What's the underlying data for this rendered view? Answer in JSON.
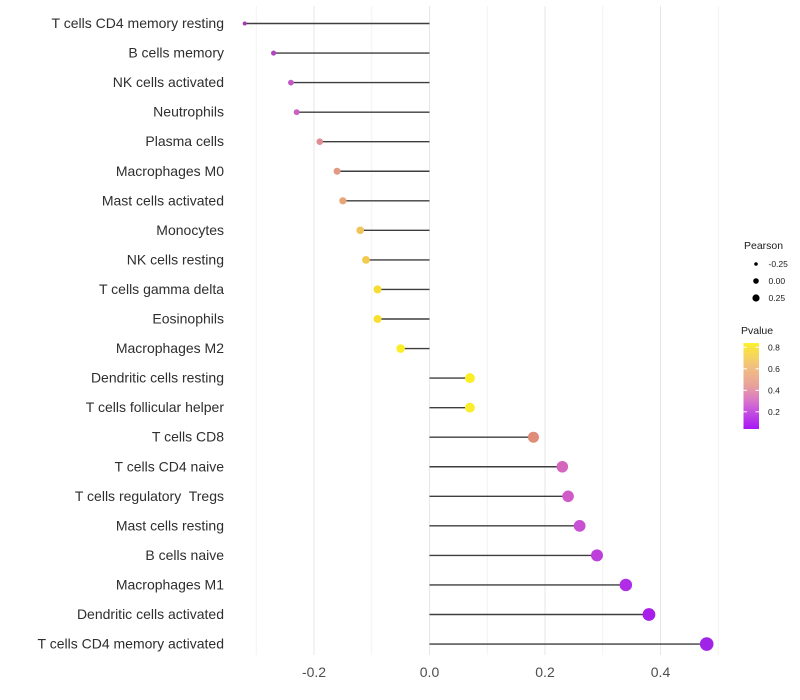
{
  "chart_data": {
    "type": "lollipop",
    "title": "",
    "xlabel": "",
    "ylabel": "",
    "xlim": [
      -0.345,
      0.52
    ],
    "grid": {
      "major": [
        -0.2,
        0.0,
        0.2,
        0.4
      ],
      "minor": [
        -0.3,
        -0.1,
        0.1,
        0.3,
        0.5
      ],
      "visible": true
    },
    "x_ticks": [
      {
        "label": "-0.2",
        "value": -0.2
      },
      {
        "label": "0.0",
        "value": 0.0
      },
      {
        "label": "0.2",
        "value": 0.2
      },
      {
        "label": "0.4",
        "value": 0.4
      }
    ],
    "points": [
      {
        "label": "T cells CD4 memory resting",
        "pearson": -0.32,
        "pvalue": 0.1,
        "color": "#A63AB4"
      },
      {
        "label": "B cells memory",
        "pearson": -0.27,
        "pvalue": 0.14,
        "color": "#B246BE"
      },
      {
        "label": "NK cells activated",
        "pearson": -0.24,
        "pvalue": 0.19,
        "color": "#C158C8"
      },
      {
        "label": "Neutrophils",
        "pearson": -0.23,
        "pvalue": 0.23,
        "color": "#CA62C3"
      },
      {
        "label": "Plasma cells",
        "pearson": -0.19,
        "pvalue": 0.42,
        "color": "#DD8E93"
      },
      {
        "label": "Macrophages M0",
        "pearson": -0.16,
        "pvalue": 0.48,
        "color": "#E39A85"
      },
      {
        "label": "Mast cells activated",
        "pearson": -0.15,
        "pvalue": 0.53,
        "color": "#E7A575"
      },
      {
        "label": "Monocytes",
        "pearson": -0.12,
        "pvalue": 0.65,
        "color": "#EFC45B"
      },
      {
        "label": "NK cells resting",
        "pearson": -0.11,
        "pvalue": 0.67,
        "color": "#F1CB4F"
      },
      {
        "label": "T cells gamma delta",
        "pearson": -0.09,
        "pvalue": 0.74,
        "color": "#F7DC33"
      },
      {
        "label": "Eosinophils",
        "pearson": -0.09,
        "pvalue": 0.75,
        "color": "#F8DF30"
      },
      {
        "label": "Macrophages M2",
        "pearson": -0.05,
        "pvalue": 0.81,
        "color": "#FBEE27"
      },
      {
        "label": "Dendritic cells resting",
        "pearson": 0.07,
        "pvalue": 0.81,
        "color": "#FBEE24"
      },
      {
        "label": "T cells follicular helper",
        "pearson": 0.07,
        "pvalue": 0.8,
        "color": "#FAED2B"
      },
      {
        "label": "T cells CD8",
        "pearson": 0.18,
        "pvalue": 0.45,
        "color": "#DF8C79"
      },
      {
        "label": "T cells CD4 naive",
        "pearson": 0.23,
        "pvalue": 0.28,
        "color": "#D466BE"
      },
      {
        "label": "T cells regulatory  Tregs",
        "pearson": 0.24,
        "pvalue": 0.25,
        "color": "#CF5AC8"
      },
      {
        "label": "Mast cells resting",
        "pearson": 0.26,
        "pvalue": 0.21,
        "color": "#C850D2"
      },
      {
        "label": "B cells naive",
        "pearson": 0.29,
        "pvalue": 0.16,
        "color": "#BE3EDC"
      },
      {
        "label": "Macrophages M1",
        "pearson": 0.34,
        "pvalue": 0.11,
        "color": "#B02CE6"
      },
      {
        "label": "Dendritic cells activated",
        "pearson": 0.38,
        "pvalue": 0.07,
        "color": "#A71FE8"
      },
      {
        "label": "T cells CD4 memory activated",
        "pearson": 0.48,
        "pvalue": 0.03,
        "color": "#A024E8"
      }
    ],
    "legends": {
      "size": {
        "title": "Pearson",
        "items": [
          {
            "label": "-0.25",
            "value": -0.25,
            "radius": 1.8
          },
          {
            "label": "0.00",
            "value": 0.0,
            "radius": 2.8
          },
          {
            "label": "0.25",
            "value": 0.25,
            "radius": 3.6
          }
        ],
        "dot_color": "#000000",
        "position": "right"
      },
      "color": {
        "title": "Pvalue",
        "ticks": [
          {
            "label": "0.8",
            "value": 0.8
          },
          {
            "label": "0.6",
            "value": 0.6
          },
          {
            "label": "0.4",
            "value": 0.4
          },
          {
            "label": "0.2",
            "value": 0.2
          }
        ],
        "bar_range": [
          0.04,
          0.84
        ],
        "gradient_top_to_bottom": [
          "#FCF32A",
          "#F9E53F",
          "#F2C17E",
          "#E8A29A",
          "#DA79C7",
          "#C44FE0",
          "#A716F5"
        ],
        "gradient_offsets": [
          0,
          0.05,
          0.27,
          0.49,
          0.66,
          0.8,
          1.0
        ],
        "position": "right"
      }
    },
    "colors": {
      "segment": "#3e3e3e",
      "grid_major": "#e7e7e7",
      "grid_minor": "#f2f2f2",
      "axis_text": "#4d4d4d",
      "label_text": "#2e2e2e",
      "background": "#ffffff"
    }
  }
}
